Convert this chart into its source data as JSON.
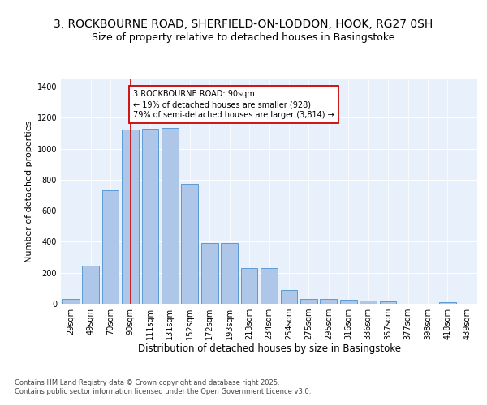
{
  "title": "3, ROCKBOURNE ROAD, SHERFIELD-ON-LODDON, HOOK, RG27 0SH",
  "subtitle": "Size of property relative to detached houses in Basingstoke",
  "xlabel": "Distribution of detached houses by size in Basingstoke",
  "ylabel": "Number of detached properties",
  "categories": [
    "29sqm",
    "49sqm",
    "70sqm",
    "90sqm",
    "111sqm",
    "131sqm",
    "152sqm",
    "172sqm",
    "193sqm",
    "213sqm",
    "234sqm",
    "254sqm",
    "275sqm",
    "295sqm",
    "316sqm",
    "336sqm",
    "357sqm",
    "377sqm",
    "398sqm",
    "418sqm",
    "439sqm"
  ],
  "values": [
    30,
    245,
    730,
    1125,
    1130,
    1135,
    775,
    390,
    390,
    230,
    230,
    90,
    30,
    30,
    25,
    20,
    18,
    0,
    0,
    8,
    0
  ],
  "bar_color": "#aec6e8",
  "bar_edge_color": "#5b9bd5",
  "ref_line_x": 3,
  "ref_line_color": "#cc0000",
  "annotation_text": "3 ROCKBOURNE ROAD: 90sqm\n← 19% of detached houses are smaller (928)\n79% of semi-detached houses are larger (3,814) →",
  "annotation_box_color": "#ffffff",
  "annotation_box_edge": "#cc0000",
  "ylim": [
    0,
    1450
  ],
  "yticks": [
    0,
    200,
    400,
    600,
    800,
    1000,
    1200,
    1400
  ],
  "bg_color": "#e8f0fb",
  "footer": "Contains HM Land Registry data © Crown copyright and database right 2025.\nContains public sector information licensed under the Open Government Licence v3.0.",
  "title_fontsize": 10,
  "subtitle_fontsize": 9,
  "xlabel_fontsize": 8.5,
  "ylabel_fontsize": 8,
  "tick_fontsize": 7,
  "footer_fontsize": 6,
  "ann_fontsize": 7
}
